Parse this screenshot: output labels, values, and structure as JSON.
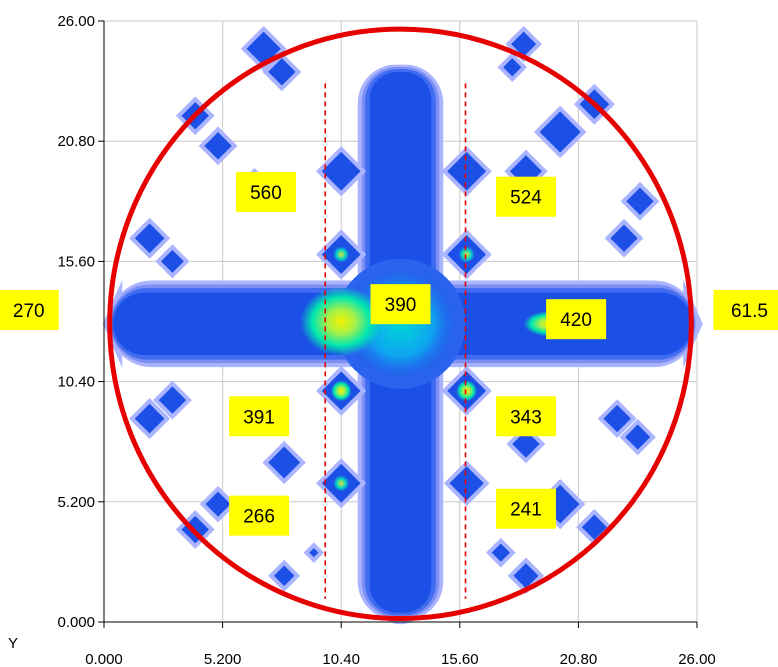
{
  "chart_data": {
    "type": "heatmap",
    "title": "",
    "xlabel": "",
    "ylabel": "Y",
    "xlim": [
      0,
      26
    ],
    "ylim": [
      0,
      26
    ],
    "x_ticks": [
      "0.000",
      "5.200",
      "10.40",
      "15.60",
      "20.80",
      "26.00"
    ],
    "y_ticks": [
      "0.000",
      "5.200",
      "10.40",
      "15.60",
      "20.80",
      "26.00"
    ],
    "grid": true,
    "colors": {
      "accent": "#e60000",
      "label_bg": "#ffff00",
      "grid": "#c8c8c8",
      "heat_low": "#aab4ff",
      "heat_mid": "#1c4fe6",
      "heat_high": "#00e7b0",
      "heat_peak": "#f2f200"
    },
    "boundary_circle": {
      "cx": 13,
      "cy": 12.9,
      "r": 12.75
    },
    "dashed_lines_x": [
      9.7,
      15.85
    ],
    "cross": {
      "center": [
        13,
        12.9
      ],
      "arm_half_width": 1.35,
      "x_extent": [
        0.4,
        25.8
      ],
      "y_extent": [
        0.4,
        23.8
      ]
    },
    "hotspots": [
      {
        "x": 10.4,
        "y": 13.0,
        "rx": 1.8,
        "ry": 1.5,
        "level": "peak"
      },
      {
        "x": 19.5,
        "y": 12.9,
        "rx": 1.1,
        "ry": 0.55,
        "level": "peak"
      },
      {
        "x": 10.4,
        "y": 10.0,
        "rx": 0.45,
        "ry": 0.45,
        "level": "peak"
      },
      {
        "x": 15.9,
        "y": 10.0,
        "rx": 0.45,
        "ry": 0.45,
        "level": "peak"
      },
      {
        "x": 10.4,
        "y": 6.0,
        "rx": 0.35,
        "ry": 0.35,
        "level": "high"
      },
      {
        "x": 10.4,
        "y": 15.9,
        "rx": 0.35,
        "ry": 0.35,
        "level": "high"
      },
      {
        "x": 15.9,
        "y": 15.9,
        "rx": 0.35,
        "ry": 0.35,
        "level": "high"
      }
    ],
    "spots": [
      {
        "x": 10.4,
        "y": 19.5,
        "s": 0.85
      },
      {
        "x": 15.9,
        "y": 19.5,
        "s": 0.85
      },
      {
        "x": 10.4,
        "y": 15.9,
        "s": 0.85
      },
      {
        "x": 15.9,
        "y": 15.9,
        "s": 0.85
      },
      {
        "x": 10.4,
        "y": 10.0,
        "s": 0.85
      },
      {
        "x": 15.9,
        "y": 10.0,
        "s": 0.85
      },
      {
        "x": 10.4,
        "y": 6.0,
        "s": 0.85
      },
      {
        "x": 15.9,
        "y": 6.0,
        "s": 0.75
      },
      {
        "x": 7.0,
        "y": 24.8,
        "s": 0.75
      },
      {
        "x": 7.8,
        "y": 23.8,
        "s": 0.6
      },
      {
        "x": 18.4,
        "y": 25.0,
        "s": 0.55
      },
      {
        "x": 17.9,
        "y": 24.0,
        "s": 0.4
      },
      {
        "x": 4.0,
        "y": 21.9,
        "s": 0.6
      },
      {
        "x": 5.0,
        "y": 20.6,
        "s": 0.6
      },
      {
        "x": 20.0,
        "y": 21.2,
        "s": 0.9
      },
      {
        "x": 21.5,
        "y": 22.4,
        "s": 0.65
      },
      {
        "x": 18.5,
        "y": 19.5,
        "s": 0.7
      },
      {
        "x": 6.6,
        "y": 18.8,
        "s": 0.6
      },
      {
        "x": 2.0,
        "y": 16.6,
        "s": 0.65
      },
      {
        "x": 3.0,
        "y": 15.6,
        "s": 0.5
      },
      {
        "x": 23.5,
        "y": 18.2,
        "s": 0.6
      },
      {
        "x": 22.8,
        "y": 16.6,
        "s": 0.6
      },
      {
        "x": 3.0,
        "y": 9.6,
        "s": 0.6
      },
      {
        "x": 2.0,
        "y": 8.8,
        "s": 0.65
      },
      {
        "x": 22.5,
        "y": 8.8,
        "s": 0.6
      },
      {
        "x": 23.4,
        "y": 8.0,
        "s": 0.55
      },
      {
        "x": 18.5,
        "y": 7.7,
        "s": 0.6
      },
      {
        "x": 7.9,
        "y": 6.9,
        "s": 0.7
      },
      {
        "x": 5.0,
        "y": 5.1,
        "s": 0.55
      },
      {
        "x": 4.0,
        "y": 4.0,
        "s": 0.6
      },
      {
        "x": 20.0,
        "y": 5.1,
        "s": 0.85
      },
      {
        "x": 21.5,
        "y": 4.1,
        "s": 0.55
      },
      {
        "x": 7.9,
        "y": 2.0,
        "s": 0.45
      },
      {
        "x": 18.5,
        "y": 2.0,
        "s": 0.55
      },
      {
        "x": 17.4,
        "y": 3.0,
        "s": 0.4
      },
      {
        "x": 9.2,
        "y": 3.0,
        "s": 0.2
      }
    ],
    "annotations": [
      {
        "text": "560",
        "x": 7.1,
        "y": 18.6
      },
      {
        "text": "524",
        "x": 18.5,
        "y": 18.4
      },
      {
        "text": "270",
        "x": -3.3,
        "y": 13.5
      },
      {
        "text": "390",
        "x": 13.0,
        "y": 13.75
      },
      {
        "text": "420",
        "x": 20.7,
        "y": 13.1
      },
      {
        "text": "61.5",
        "x": 28.3,
        "y": 13.5
      },
      {
        "text": "391",
        "x": 6.8,
        "y": 8.9
      },
      {
        "text": "343",
        "x": 18.5,
        "y": 8.9
      },
      {
        "text": "266",
        "x": 6.8,
        "y": 4.6
      },
      {
        "text": "241",
        "x": 18.5,
        "y": 4.9
      }
    ]
  }
}
